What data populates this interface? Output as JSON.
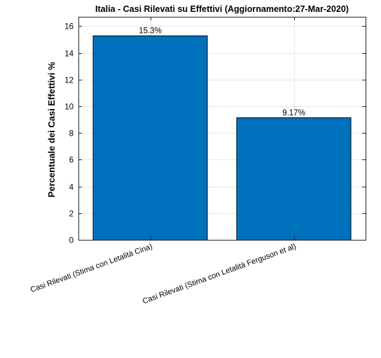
{
  "chart_data": {
    "type": "bar",
    "title": "Italia - Casi Rilevati su Effettivi (Aggiornamento:27-Mar-2020)",
    "xlabel": "",
    "ylabel": "Percentuale dei Casi Effettivi %",
    "categories": [
      "Casi Rilevati (Stima con Letalità Cina)",
      "Casi Rilevati (Stima con Letalità Ferguson et al)"
    ],
    "values": [
      15.3,
      9.17
    ],
    "data_labels": [
      "15.3%",
      "9.17%"
    ],
    "ylim": [
      0,
      16.7
    ],
    "yticks": [
      0,
      2,
      4,
      6,
      8,
      10,
      12,
      14,
      16
    ],
    "grid": true,
    "bar_color": "#0072BD"
  }
}
